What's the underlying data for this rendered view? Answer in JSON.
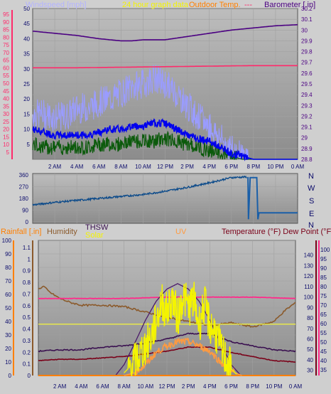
{
  "colors": {
    "background": "#cfcfcf",
    "plot_top": "#b8b8b8",
    "plot_bottom": "#8a8a8a",
    "axis_text": "#0b0b6b",
    "wind_speed": "#0000ee",
    "wind_gust": "#9a9cff",
    "wind_avg": "#0b5a0b",
    "wind_label": "#b3b3ff",
    "outdoor_temp": "#ff2a6b",
    "barometer": "#4b0082",
    "title": "#f3f300",
    "direction": "#0b4a8a",
    "rainfall": "#ff7f00",
    "humidity": "#8b5a2b",
    "thsw": "#3a1050",
    "solar": "#f4f400",
    "uv": "#ff9a40",
    "temperature": "#7a0018",
    "dew_point": "#ff2a8a",
    "solar_theoretical": "#4b1a6a",
    "humidity_flat": "#eeee44"
  },
  "x_ticks": [
    "2 AM",
    "4 AM",
    "6 AM",
    "8 AM",
    "10 AM",
    "12 PM",
    "2 PM",
    "4 PM",
    "6 PM",
    "8 PM",
    "10 PM",
    "0 AM"
  ],
  "chart_data": [
    {
      "type": "line",
      "title": "24 hour graph data",
      "labels": {
        "windspeed": "Windspeed [mph]",
        "outdoor_temp": "Outdoor Temp.",
        "barometer": "Barometer [.in]"
      },
      "x_range_hours": [
        0,
        24
      ],
      "ylim_left": [
        0,
        50
      ],
      "ylim_right": [
        28.8,
        30.2
      ],
      "left_ticks": [
        "0",
        "5",
        "10",
        "15",
        "20",
        "25",
        "30",
        "35",
        "40",
        "45",
        "50"
      ],
      "left_tick_labels": [
        "",
        "5",
        "10",
        "15",
        "20",
        "25",
        "30",
        "35",
        "40",
        "45",
        "50"
      ],
      "left_color_ticks": [
        "5",
        "10",
        "15",
        "20",
        "25",
        "30",
        "35",
        "40",
        "45",
        "50",
        "55",
        "60",
        "65",
        "70",
        "75",
        "80",
        "85",
        "90",
        "95"
      ],
      "right_ticks": [
        "28.8",
        "28.9",
        "29",
        "29.1",
        "29.2",
        "29.3",
        "29.4",
        "29.5",
        "29.6",
        "29.7",
        "29.8",
        "29.9",
        "30",
        "30.1",
        "30.2"
      ],
      "series": [
        {
          "name": "Barometer",
          "axis": "right",
          "x": [
            0,
            2,
            4,
            6,
            8,
            9,
            10,
            12,
            14,
            16,
            18,
            20,
            22,
            24
          ],
          "values": [
            29.99,
            29.97,
            29.95,
            29.92,
            29.9,
            29.9,
            29.91,
            29.91,
            29.94,
            29.97,
            30.0,
            30.02,
            30.04,
            30.05
          ]
        },
        {
          "name": "Outdoor Temp.",
          "axis": "right",
          "x": [
            0,
            4,
            8,
            12,
            16,
            20,
            24
          ],
          "values": [
            29.65,
            29.65,
            29.655,
            29.66,
            29.665,
            29.67,
            29.67
          ]
        },
        {
          "name": "Wind gust",
          "axis": "left",
          "x": [
            0,
            1,
            2,
            3,
            4,
            5,
            6,
            7,
            8,
            9,
            10,
            11,
            12,
            13,
            14,
            15,
            16,
            17,
            18,
            19,
            20,
            21,
            22,
            23,
            24
          ],
          "values": [
            15,
            15,
            14,
            14,
            17,
            17,
            19,
            20,
            22,
            24,
            25,
            27,
            25,
            22,
            18,
            14,
            11,
            7,
            3,
            1,
            0,
            0,
            0,
            0,
            0
          ]
        },
        {
          "name": "Windspeed",
          "axis": "left",
          "x": [
            0,
            1,
            2,
            3,
            4,
            5,
            6,
            7,
            8,
            9,
            10,
            11,
            12,
            13,
            14,
            15,
            16,
            17,
            18,
            19,
            20,
            21,
            22,
            23,
            24
          ],
          "values": [
            10,
            9,
            8,
            8,
            8,
            8,
            9,
            10,
            10,
            11,
            11,
            12,
            12,
            10,
            8,
            7,
            6,
            4,
            2,
            1,
            0,
            0,
            0,
            0,
            0
          ]
        },
        {
          "name": "Wind avg",
          "axis": "left",
          "x": [
            0,
            1,
            2,
            3,
            4,
            5,
            6,
            7,
            8,
            9,
            10,
            11,
            12,
            13,
            14,
            15,
            16,
            17,
            18,
            19,
            20,
            21,
            22,
            23,
            24
          ],
          "values": [
            5,
            4,
            4,
            4,
            4,
            4,
            5,
            5,
            5,
            6,
            6,
            6,
            7,
            6,
            5,
            4,
            3,
            2,
            1,
            0,
            0,
            0,
            0,
            0,
            0
          ]
        }
      ]
    },
    {
      "type": "line",
      "labels": {
        "N": "N",
        "W": "W",
        "S": "S",
        "E": "E"
      },
      "ylim": [
        0,
        360
      ],
      "y_ticks": [
        "0",
        "90",
        "180",
        "270",
        "360"
      ],
      "x_range_hours": [
        0,
        24
      ],
      "series": [
        {
          "name": "Wind direction",
          "x": [
            0,
            2,
            4,
            6,
            8,
            10,
            12,
            14,
            16,
            17,
            18,
            19.5,
            19.55,
            19.7,
            20.3,
            20.4,
            20.5,
            24
          ],
          "values": [
            130,
            150,
            165,
            180,
            195,
            210,
            235,
            265,
            300,
            320,
            340,
            345,
            20,
            340,
            340,
            20,
            70,
            70
          ]
        }
      ]
    },
    {
      "type": "line",
      "labels": {
        "rainfall": "Rainfall [.in]",
        "humidity": "Humidity",
        "thsw": "THSW",
        "solar": "Solar",
        "uv": "UV",
        "temperature": "Temperature (°F) Dew Point (°F)"
      },
      "x_range_hours": [
        0,
        24
      ],
      "rain_ticks": [
        "0",
        "10",
        "20",
        "30",
        "40",
        "50",
        "60",
        "70",
        "80",
        "90",
        "100"
      ],
      "rain_ylim": [
        0,
        100
      ],
      "humidity_ticks": [
        "0",
        "0.1",
        "0.2",
        "0.3",
        "0.4",
        "0.5",
        "0.6",
        "0.7",
        "0.8",
        "0.9",
        "1",
        "1.1"
      ],
      "humidity_ylim": [
        0,
        1.1
      ],
      "temp_ticks": [
        "30",
        "40",
        "50",
        "60",
        "70",
        "80",
        "90",
        "100",
        "110",
        "120",
        "130",
        "140"
      ],
      "temp_ylim": [
        30,
        150
      ],
      "dew_ticks": [
        "35",
        "40",
        "45",
        "50",
        "55",
        "60",
        "65",
        "70",
        "75",
        "80",
        "85",
        "90",
        "95",
        "100"
      ],
      "dew_ylim": [
        35,
        105
      ],
      "series": [
        {
          "name": "Humidity",
          "axis": "left",
          "x": [
            0,
            0.5,
            1,
            2,
            3,
            4,
            6,
            8,
            10,
            12,
            14,
            16,
            18,
            20,
            22,
            23,
            24
          ],
          "values": [
            64,
            66,
            62,
            57,
            54,
            52,
            52,
            51,
            47,
            43,
            40,
            37,
            39,
            36,
            40,
            48,
            54
          ]
        },
        {
          "name": "Dew Point",
          "axis": "left",
          "x": [
            0,
            4,
            8,
            12,
            16,
            20,
            24
          ],
          "values": [
            57,
            57,
            57,
            58,
            58,
            58,
            57
          ]
        },
        {
          "name": "Humidity flat",
          "axis": "left",
          "x": [
            0,
            24
          ],
          "values": [
            38,
            38
          ]
        },
        {
          "name": "THSW",
          "axis": "left",
          "x": [
            0,
            2,
            4,
            6,
            8,
            10,
            12,
            14,
            16,
            18,
            20,
            22,
            24
          ],
          "values": [
            18,
            19,
            19,
            21,
            22,
            24,
            27,
            31,
            31,
            25,
            22,
            19,
            18
          ]
        },
        {
          "name": "Temperature",
          "axis": "left",
          "x": [
            0,
            2,
            4,
            6,
            8,
            10,
            12,
            14,
            16,
            18,
            20,
            22,
            24
          ],
          "values": [
            11,
            12,
            12,
            13,
            14,
            16,
            18,
            21,
            21,
            17,
            14,
            11,
            10
          ]
        },
        {
          "name": "Solar theoretical",
          "axis": "left",
          "x": [
            7.2,
            8,
            9,
            10,
            11,
            12,
            13,
            14,
            15,
            16,
            17,
            18,
            18.9
          ],
          "values": [
            0,
            8,
            24,
            41,
            55,
            64,
            68,
            64,
            55,
            41,
            24,
            8,
            0
          ]
        },
        {
          "name": "Solar",
          "axis": "left",
          "x": [
            8,
            9,
            10,
            10.5,
            11,
            11.5,
            12,
            12.5,
            13,
            13.5,
            14,
            14.5,
            15,
            15.5,
            16,
            16.5,
            17,
            17.5,
            18,
            18.5
          ],
          "values": [
            2,
            10,
            22,
            28,
            40,
            55,
            47,
            58,
            42,
            60,
            50,
            56,
            38,
            53,
            37,
            33,
            20,
            12,
            5,
            1
          ]
        },
        {
          "name": "UV",
          "axis": "left",
          "x": [
            8,
            9,
            10,
            11,
            12,
            13,
            14,
            15,
            16,
            17,
            18,
            19
          ],
          "values": [
            0,
            2,
            8,
            17,
            22,
            25,
            25,
            22,
            18,
            10,
            3,
            0
          ]
        },
        {
          "name": "Rainfall",
          "axis": "left",
          "x": [
            0,
            24
          ],
          "values": [
            0,
            0
          ]
        }
      ]
    }
  ]
}
